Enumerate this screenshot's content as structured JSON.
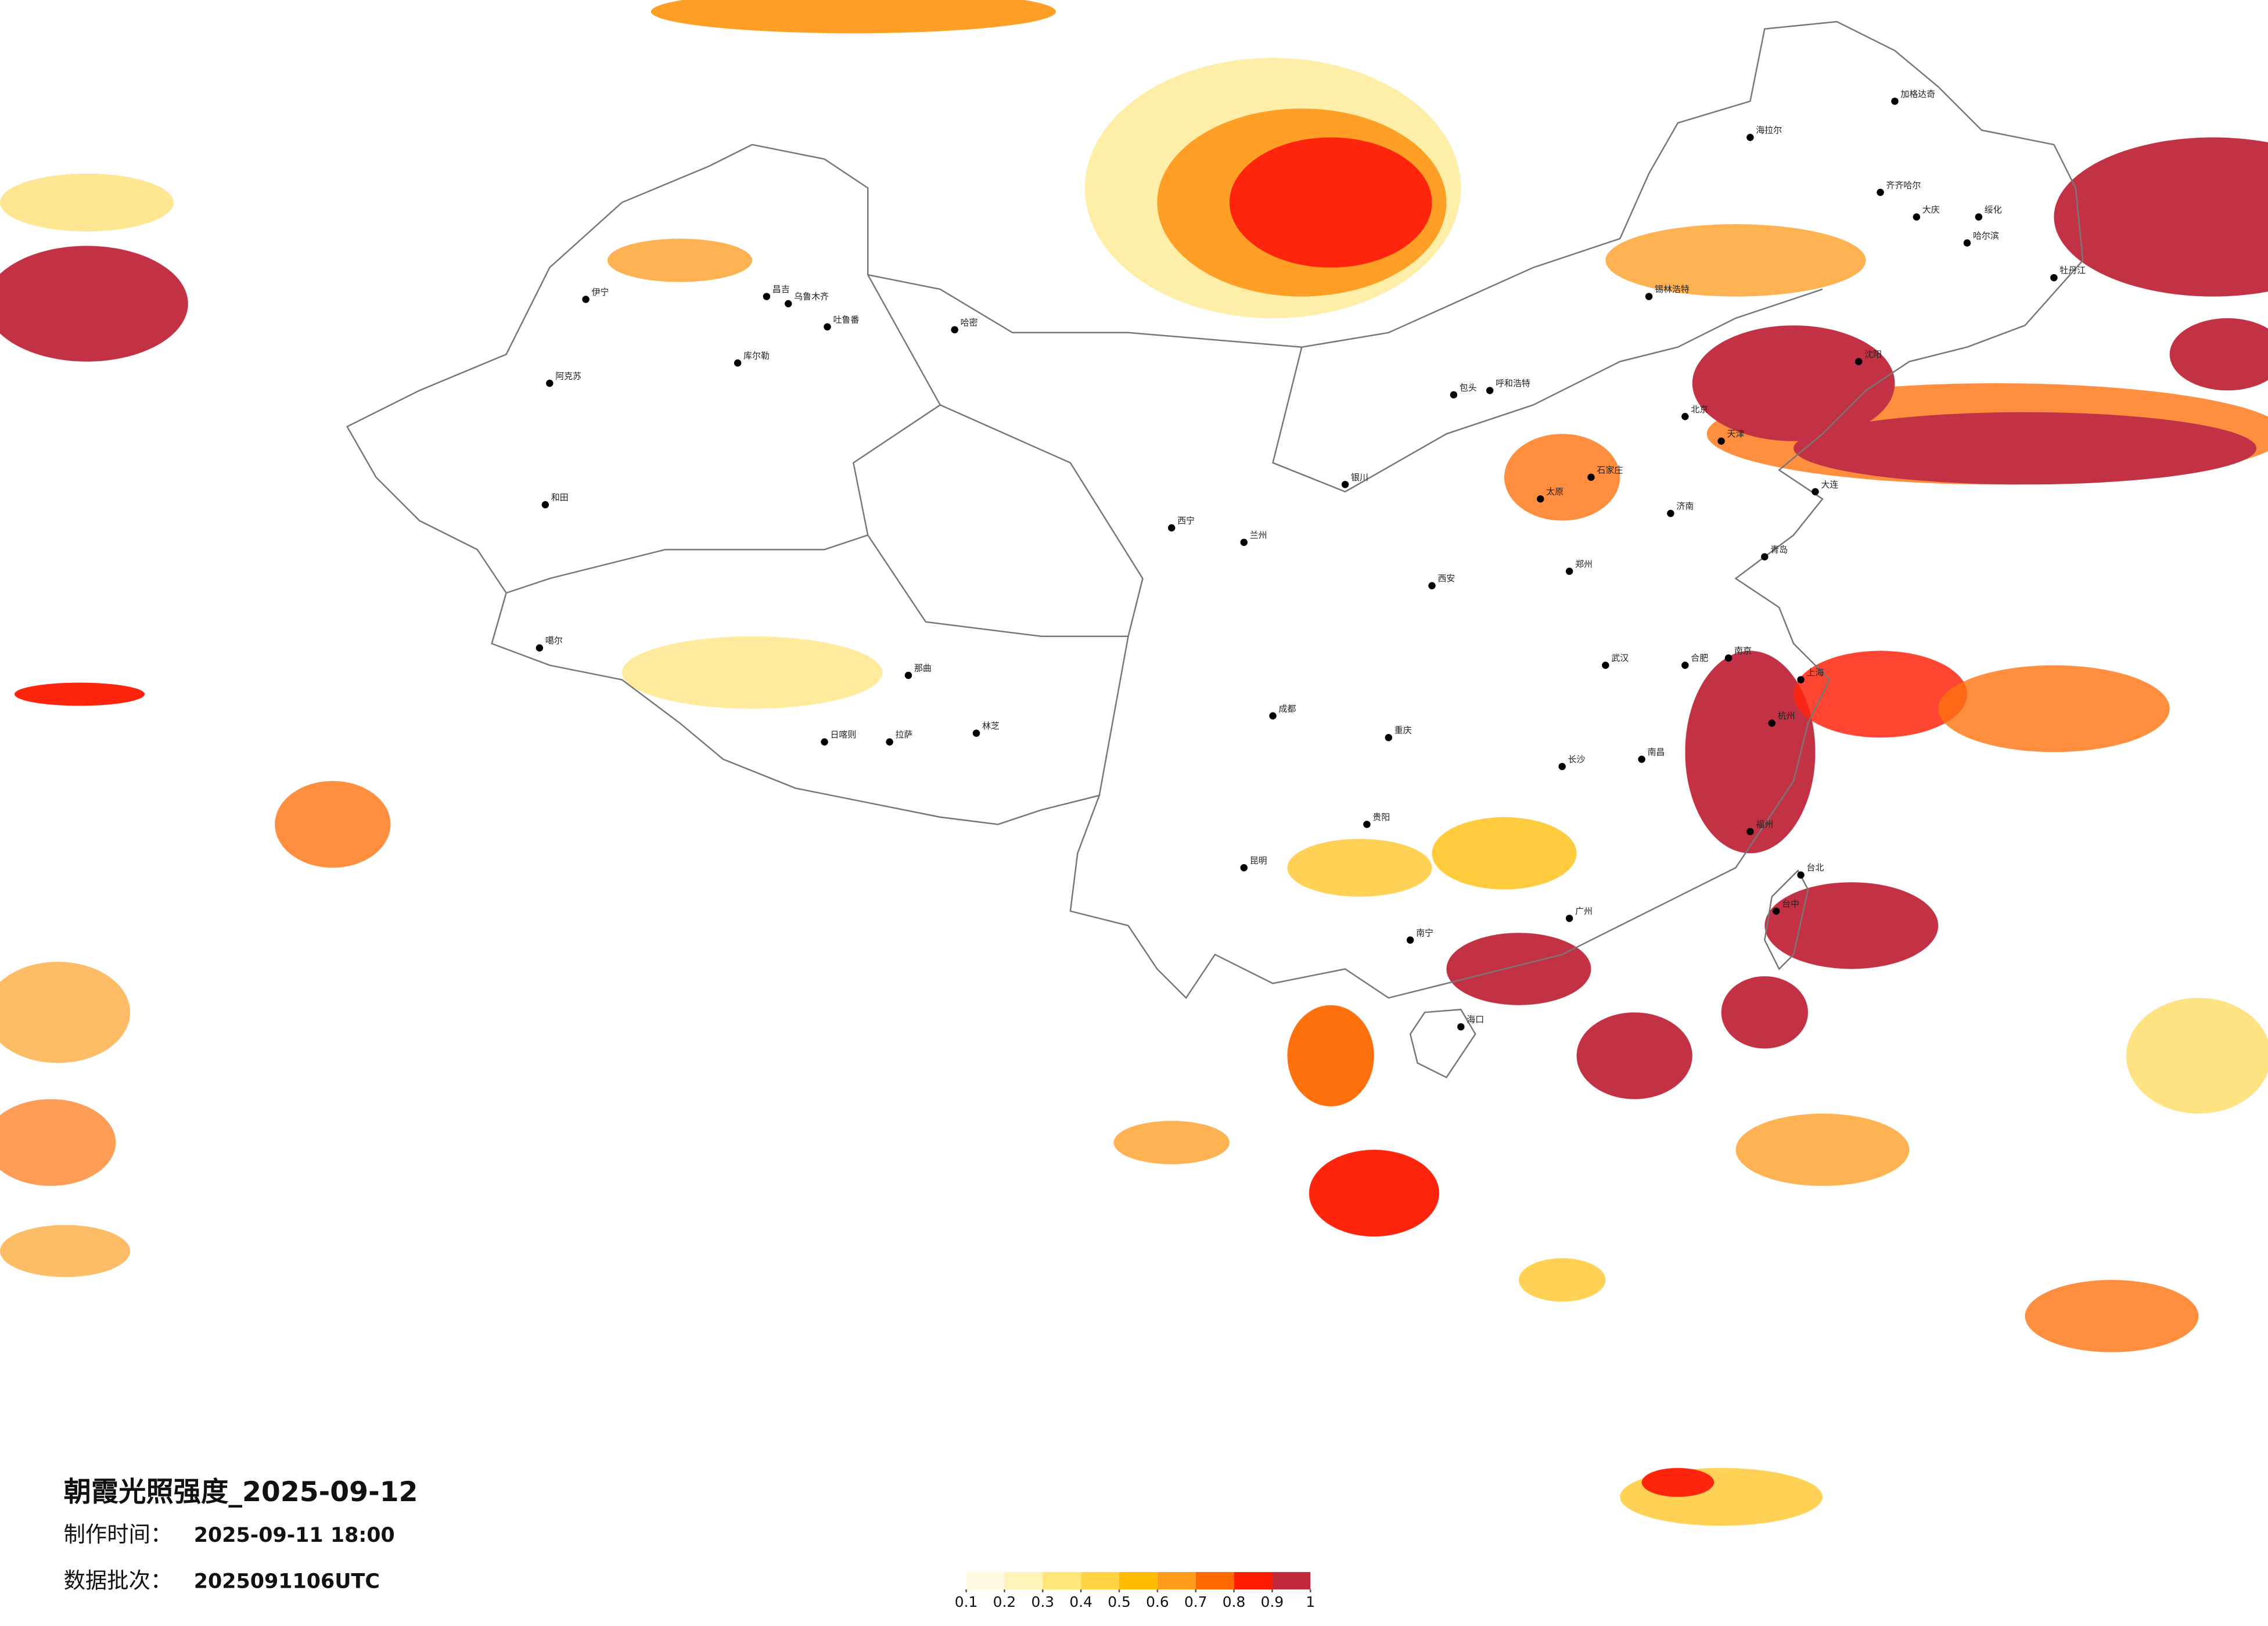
{
  "title": "朝霞光照强度_2025-09-12",
  "meta": [
    {
      "label": "制作时间：",
      "value": "2025-09-11 18:00"
    },
    {
      "label": "数据批次：",
      "value": "2025091106UTC"
    }
  ],
  "legend": {
    "ticks": [
      0.1,
      0.2,
      0.3,
      0.4,
      0.5,
      0.6,
      0.7,
      0.8,
      0.9,
      1
    ],
    "colors": [
      "#fffbe3",
      "#fff3b8",
      "#ffe57a",
      "#ffd343",
      "#ffbb00",
      "#ff9a1a",
      "#ff6a00",
      "#ff1a00",
      "#c0283a"
    ]
  },
  "cities": [
    "阿克苏",
    "和田",
    "伊宁",
    "昌吉",
    "乌鲁木齐",
    "吐鲁番",
    "库尔勒",
    "哈密",
    "那曲",
    "日喀则",
    "拉萨",
    "林芝",
    "噶尔",
    "哈尔滨",
    "齐齐哈尔",
    "大庆",
    "绥化",
    "牡丹江",
    "海拉尔",
    "加格达奇",
    "锡林浩特",
    "呼和浩特",
    "包头",
    "北京",
    "天津",
    "石家庄",
    "太原",
    "济南",
    "郑州",
    "西安",
    "兰州",
    "西宁",
    "银川",
    "成都",
    "重庆",
    "武汉",
    "南京",
    "上海",
    "杭州",
    "合肥",
    "长沙",
    "南昌",
    "福州",
    "广州",
    "南宁",
    "贵阳",
    "昆明",
    "海口",
    "台北",
    "台中",
    "大连",
    "青岛",
    "沈阳"
  ]
}
